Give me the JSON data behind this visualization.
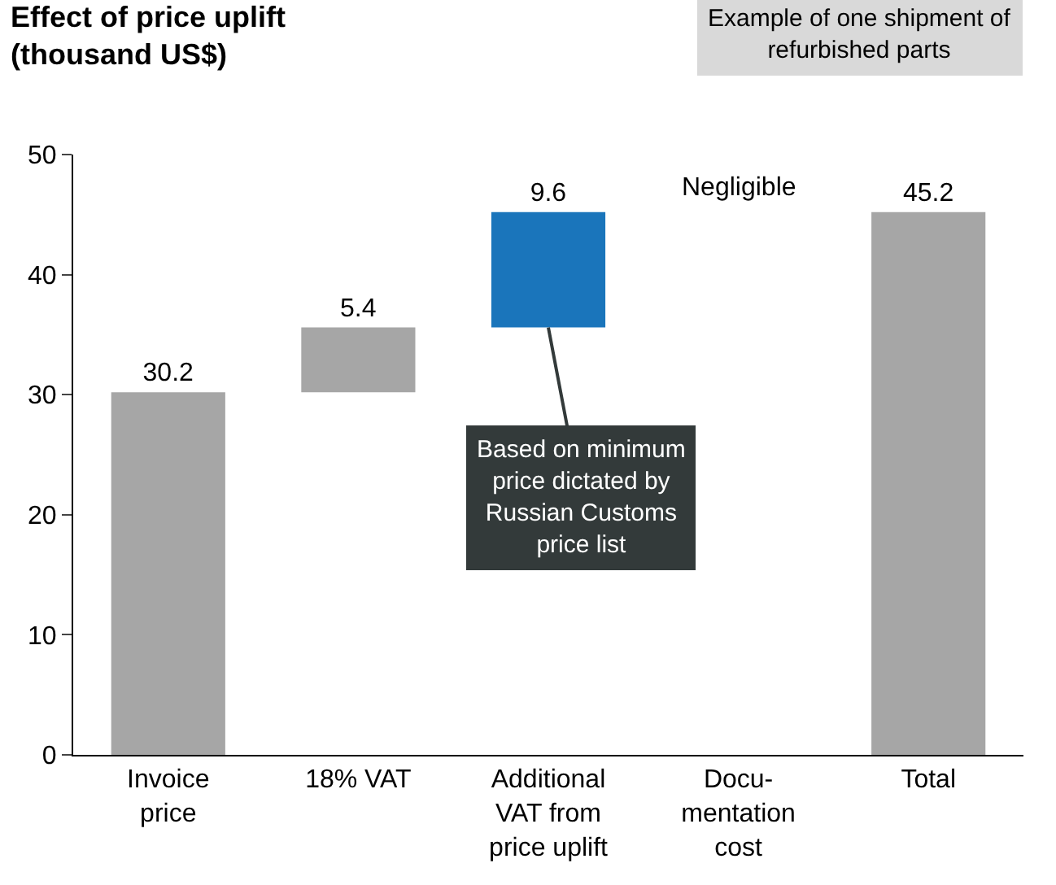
{
  "chart_data": {
    "type": "bar",
    "title": "Effect of price uplift\n(thousand US$)",
    "categories": [
      "Invoice\nprice",
      "18% VAT",
      "Additional\nVAT from\nprice uplift",
      "Docu-\nmentation\ncost",
      "Total"
    ],
    "values": [
      30.2,
      5.4,
      9.6,
      null,
      45.2
    ],
    "base": [
      0,
      30.2,
      35.6,
      null,
      0
    ],
    "colors": [
      "#a6a6a6",
      "#a6a6a6",
      "#1a75bb",
      "#a6a6a6",
      "#a6a6a6"
    ],
    "value_labels": [
      "30.2",
      "5.4",
      "9.6",
      null,
      "45.2"
    ],
    "ylim": [
      0,
      50
    ],
    "yticks": [
      0,
      10,
      20,
      30,
      40,
      50
    ],
    "legend": false,
    "annotations": [
      "Example of one shipment of\nrefurbished parts",
      "Negligible",
      {
        "text": "Based on minimum\nprice dictated by\nRussian Customs\nprice list",
        "x": "Additional\nVAT from\nprice uplift",
        "y": 35.6
      }
    ]
  }
}
